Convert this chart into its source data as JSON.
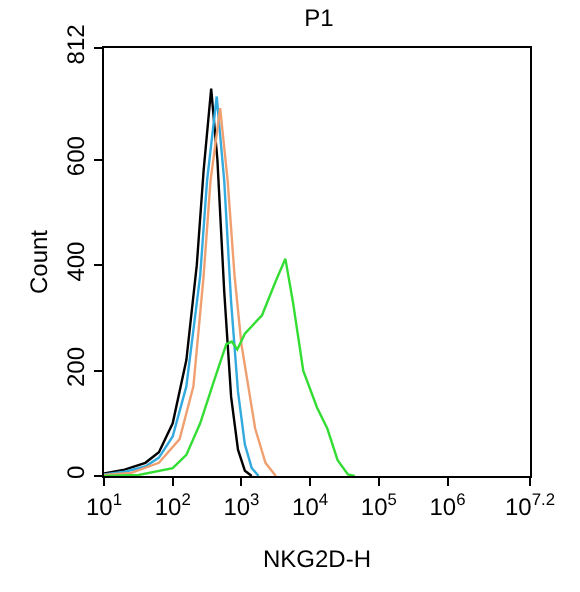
{
  "chart_data": {
    "type": "line",
    "title": "P1",
    "xlabel": "NKG2D-H",
    "ylabel": "Count",
    "log": "x",
    "marker": "none",
    "line_style": "solid",
    "xlim": [
      10,
      15848932
    ],
    "xticks": [
      {
        "value": 10,
        "label": "10$^{1}$"
      },
      {
        "value": 100,
        "label": "10$^{2}$"
      },
      {
        "value": 1000,
        "label": "10$^{3}$"
      },
      {
        "value": 10000,
        "label": "10$^{4}$"
      },
      {
        "value": 100000,
        "label": "10$^{5}$"
      },
      {
        "value": 1000000,
        "label": "10$^{6}$"
      },
      {
        "value": 15848932,
        "label": "10$^{7.2}$"
      }
    ],
    "ylim": [
      0,
      812
    ],
    "yticks": [
      0,
      200,
      400,
      600,
      812
    ],
    "series": [
      {
        "color": "#000000",
        "x": [
          10,
          20,
          40,
          63,
          100,
          158,
          224,
          282,
          363,
          447,
          562,
          708,
          891,
          1122,
          1413
        ],
        "values": [
          5,
          12,
          25,
          45,
          100,
          220,
          400,
          580,
          735,
          600,
          350,
          150,
          50,
          10,
          0
        ]
      },
      {
        "color": "#33aadd",
        "x": [
          10,
          20,
          40,
          63,
          100,
          158,
          251,
          316,
          437,
          562,
          708,
          891,
          1122,
          1413,
          1778
        ],
        "values": [
          3,
          8,
          18,
          35,
          75,
          170,
          380,
          560,
          720,
          560,
          330,
          160,
          60,
          15,
          0
        ]
      },
      {
        "color": "#f0a070",
        "x": [
          10,
          25,
          63,
          126,
          200,
          282,
          355,
          490,
          631,
          794,
          1000,
          1259,
          1585,
          2239,
          3162
        ],
        "values": [
          2,
          6,
          25,
          70,
          170,
          380,
          560,
          698,
          560,
          380,
          250,
          170,
          90,
          25,
          0
        ]
      },
      {
        "color": "#33dd33",
        "x": [
          10,
          32,
          100,
          158,
          251,
          398,
          603,
          724,
          871,
          1122,
          1995,
          3162,
          4365,
          5623,
          7943,
          12589,
          17783,
          25119,
          35481,
          44668
        ],
        "values": [
          0,
          2,
          15,
          40,
          100,
          180,
          250,
          255,
          240,
          270,
          305,
          370,
          412,
          330,
          200,
          130,
          90,
          30,
          3,
          0
        ]
      }
    ]
  }
}
